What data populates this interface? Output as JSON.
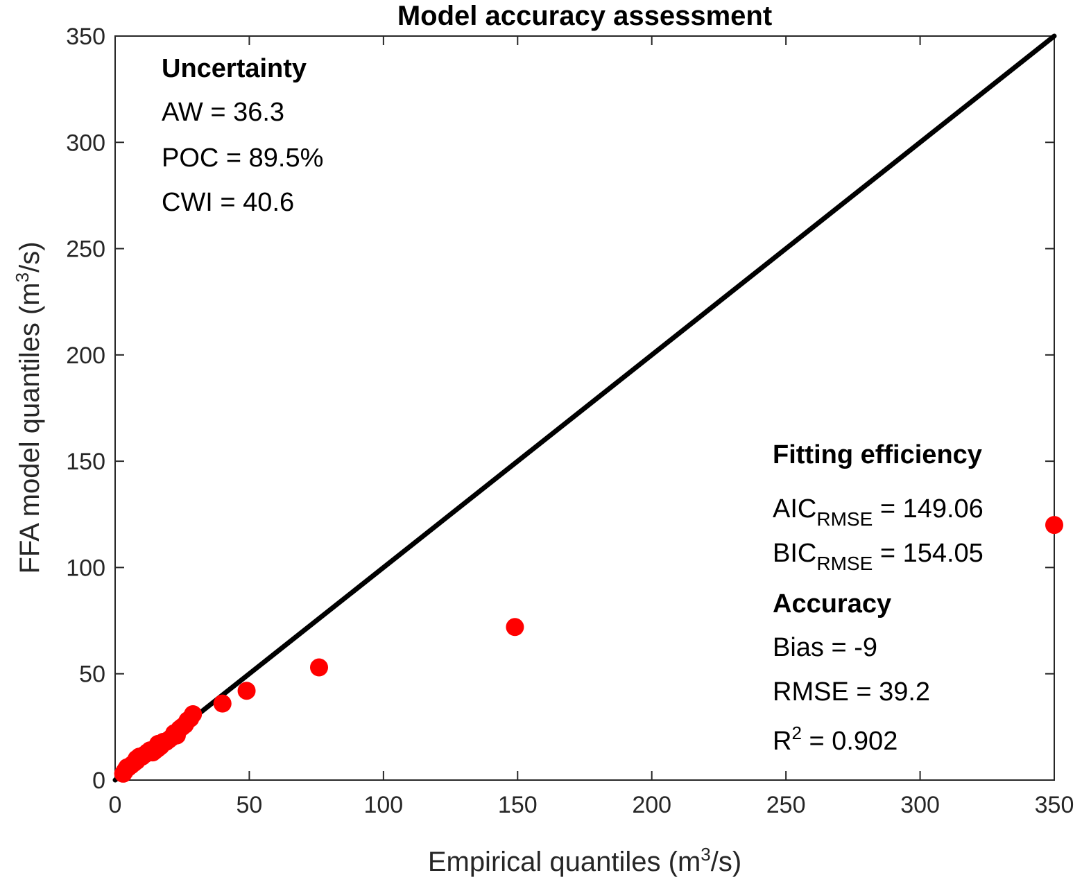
{
  "chart_data": {
    "type": "scatter",
    "title": "Model accuracy assessment",
    "xlabel": {
      "pre": "Empirical quantiles (m",
      "sup": "3",
      "post": "/s)"
    },
    "ylabel": {
      "pre": "FFA model quantiles (m",
      "sup": "3",
      "post": "/s)"
    },
    "xlim": [
      0,
      350
    ],
    "ylim": [
      0,
      350
    ],
    "xticks": [
      0,
      50,
      100,
      150,
      200,
      250,
      300,
      350
    ],
    "yticks": [
      0,
      50,
      100,
      150,
      200,
      250,
      300,
      350
    ],
    "grid": false,
    "reference_line": {
      "x": [
        0,
        350
      ],
      "y": [
        0,
        350
      ],
      "color": "#000000"
    },
    "point_color": "#ff0000",
    "points": [
      {
        "x": 3,
        "y": 3
      },
      {
        "x": 3.5,
        "y": 4
      },
      {
        "x": 4,
        "y": 5
      },
      {
        "x": 4.5,
        "y": 6
      },
      {
        "x": 5,
        "y": 6
      },
      {
        "x": 6,
        "y": 7
      },
      {
        "x": 7,
        "y": 8
      },
      {
        "x": 8,
        "y": 9
      },
      {
        "x": 8,
        "y": 10
      },
      {
        "x": 9,
        "y": 11
      },
      {
        "x": 10,
        "y": 11
      },
      {
        "x": 11,
        "y": 12
      },
      {
        "x": 12,
        "y": 13
      },
      {
        "x": 13,
        "y": 14
      },
      {
        "x": 14,
        "y": 13
      },
      {
        "x": 15,
        "y": 14
      },
      {
        "x": 16,
        "y": 15
      },
      {
        "x": 16,
        "y": 17
      },
      {
        "x": 17,
        "y": 16
      },
      {
        "x": 18,
        "y": 18
      },
      {
        "x": 19,
        "y": 18
      },
      {
        "x": 20,
        "y": 19
      },
      {
        "x": 21,
        "y": 20
      },
      {
        "x": 22,
        "y": 22
      },
      {
        "x": 23,
        "y": 21
      },
      {
        "x": 24,
        "y": 24
      },
      {
        "x": 25,
        "y": 25
      },
      {
        "x": 26,
        "y": 26
      },
      {
        "x": 27,
        "y": 28
      },
      {
        "x": 28,
        "y": 29
      },
      {
        "x": 29,
        "y": 31
      },
      {
        "x": 40,
        "y": 36
      },
      {
        "x": 49,
        "y": 42
      },
      {
        "x": 76,
        "y": 53
      },
      {
        "x": 149,
        "y": 72
      },
      {
        "x": 350,
        "y": 120
      }
    ]
  },
  "annotations": {
    "uncertainty": {
      "heading": "Uncertainty",
      "aw": "AW = 36.3",
      "poc": "POC = 89.5%",
      "cwi": "CWI = 40.6"
    },
    "fitting": {
      "heading": "Fitting efficiency",
      "aic": {
        "base": "AIC",
        "sub": "RMSE",
        "rest": " = 149.06"
      },
      "bic": {
        "base": "BIC",
        "sub": "RMSE",
        "rest": " = 154.05"
      }
    },
    "accuracy": {
      "heading": "Accuracy",
      "bias": "Bias = -9",
      "rmse": "RMSE = 39.2",
      "r2": {
        "base": "R",
        "sup": "2",
        "rest": " = 0.902"
      }
    }
  }
}
